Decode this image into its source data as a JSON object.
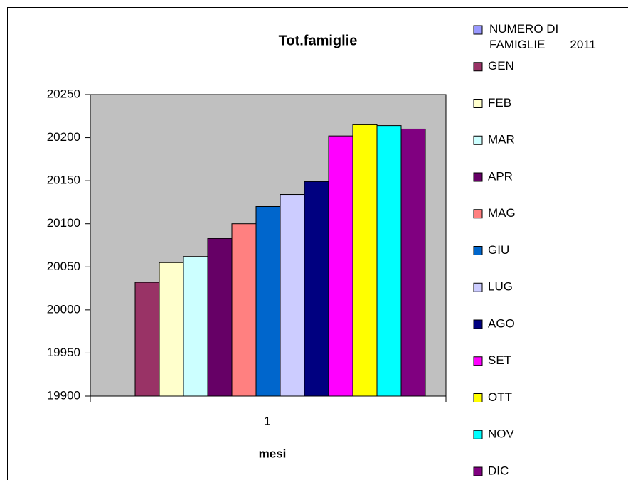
{
  "chart_data": {
    "type": "bar",
    "title": "Tot.famiglie",
    "x_label": "mesi",
    "categories": [
      "1"
    ],
    "ylim": [
      19900,
      20250
    ],
    "yticks": [
      19900,
      19950,
      20000,
      20050,
      20100,
      20150,
      20200,
      20250
    ],
    "grid": false,
    "legend": "right",
    "series": [
      {
        "name": "NUMERO DI FAMIGLIE 2011",
        "color": "#9999ff",
        "values": [
          null
        ]
      },
      {
        "name": "GEN",
        "color": "#993366",
        "values": [
          20032
        ]
      },
      {
        "name": "FEB",
        "color": "#ffffcc",
        "values": [
          20055
        ]
      },
      {
        "name": "MAR",
        "color": "#ccffff",
        "values": [
          20062
        ]
      },
      {
        "name": "APR",
        "color": "#660066",
        "values": [
          20083
        ]
      },
      {
        "name": "MAG",
        "color": "#ff8080",
        "values": [
          20100
        ]
      },
      {
        "name": "GIU",
        "color": "#0066cc",
        "values": [
          20120
        ]
      },
      {
        "name": "LUG",
        "color": "#ccccff",
        "values": [
          20134
        ]
      },
      {
        "name": "AGO",
        "color": "#000080",
        "values": [
          20149
        ]
      },
      {
        "name": "SET",
        "color": "#ff00ff",
        "values": [
          20202
        ]
      },
      {
        "name": "OTT",
        "color": "#ffff00",
        "values": [
          20215
        ]
      },
      {
        "name": "NOV",
        "color": "#00ffff",
        "values": [
          20214
        ]
      },
      {
        "name": "DIC",
        "color": "#800080",
        "values": [
          20210
        ]
      }
    ]
  }
}
